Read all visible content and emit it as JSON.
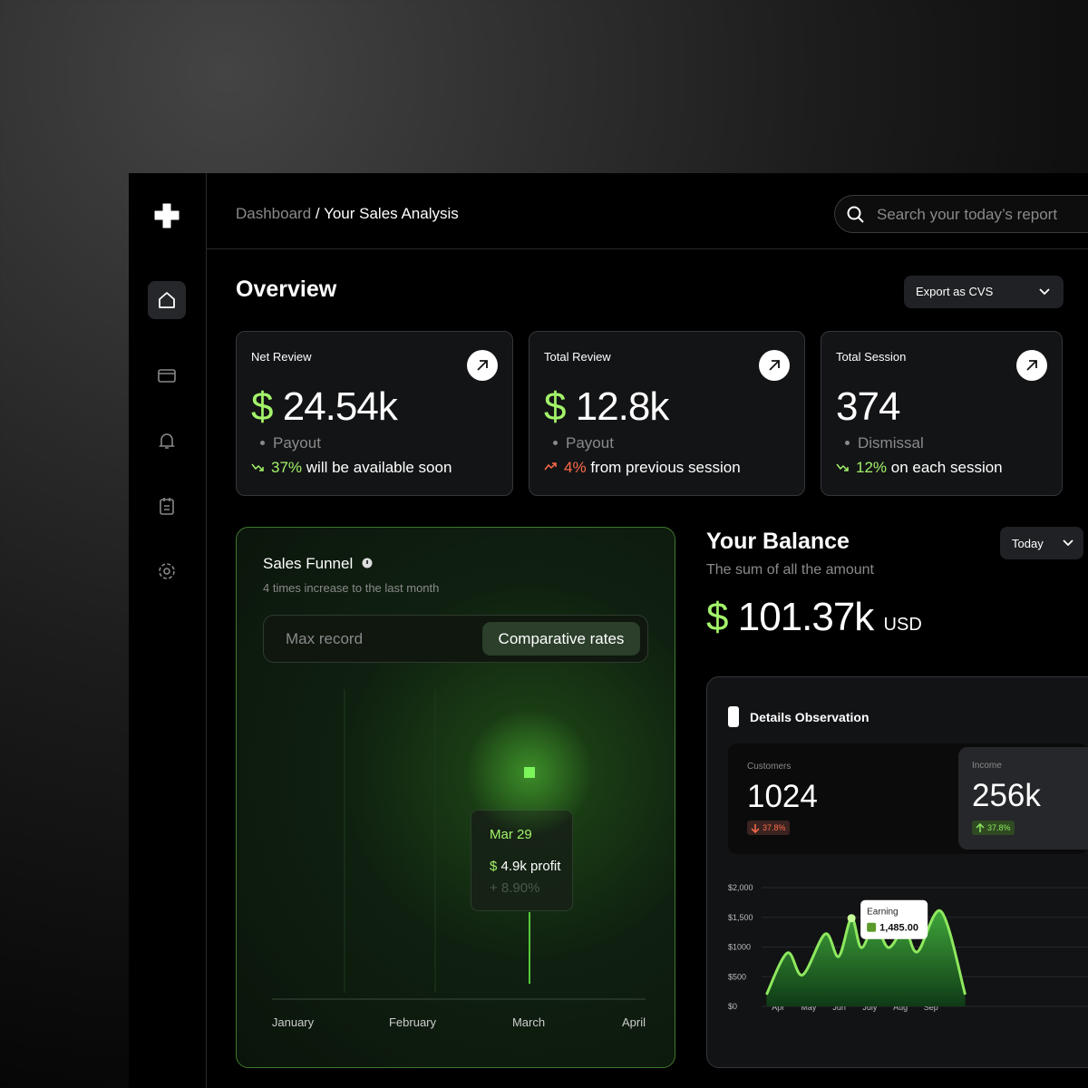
{
  "breadcrumb": {
    "parent": "Dashboard",
    "separator": "/",
    "current": "Your Sales Analysis"
  },
  "search": {
    "placeholder": "Search your today’s report"
  },
  "overview": {
    "title": "Overview",
    "export_button": "Export as CVS"
  },
  "cards": [
    {
      "title": "Net Review",
      "currency": "$",
      "value": "24.54k",
      "label": "Payout",
      "change": "37%",
      "change_text": "will be available soon",
      "trend": "positive"
    },
    {
      "title": "Total Review",
      "currency": "$",
      "value": "12.8k",
      "label": "Payout",
      "change": "4%",
      "change_text": "from previous session",
      "trend": "negative"
    },
    {
      "title": "Total Session",
      "value": "374",
      "label": "Dismissal",
      "change": "12%",
      "change_text": "on each session",
      "trend": "positive"
    }
  ],
  "sales_funnel": {
    "title": "Sales Funnel",
    "subtitle": "4 times increase to the last month",
    "tabs": [
      "Max record",
      "Comparative rates"
    ],
    "active_tab": 1,
    "tooltip": {
      "date": "Mar 29",
      "currency": "$",
      "profit": "4.9k profit",
      "change": "+ 8.90%"
    },
    "months": [
      "January",
      "February",
      "March",
      "April"
    ]
  },
  "balance": {
    "title": "Your Balance",
    "subtitle": "The sum of all the amount",
    "currency": "$",
    "amount": "101.37k",
    "unit": "USD",
    "period": "Today"
  },
  "details": {
    "title": "Details Observation",
    "stats": [
      {
        "label": "Customers",
        "value": "1024",
        "change": "37.8%",
        "trend": "down"
      },
      {
        "label": "Income",
        "value": "256k",
        "change": "37.8%",
        "trend": "up"
      }
    ]
  },
  "chart_data": {
    "type": "area",
    "x": [
      -0.38,
      0.3,
      0.8,
      1.54,
      1.98,
      2.4,
      2.72,
      3.17,
      3.61,
      4.14,
      4.56,
      5.33,
      6.12
    ],
    "values": [
      200,
      900,
      530,
      1220,
      840,
      1485,
      990,
      1370,
      990,
      1300,
      920,
      1600,
      200
    ],
    "color": "#8ee85e",
    "xlim": [
      -0.6,
      6.4
    ],
    "xticks": [
      {
        "value": 0,
        "label": "Apr"
      },
      {
        "value": 1,
        "label": "May"
      },
      {
        "value": 2,
        "label": "Jun"
      },
      {
        "value": 3,
        "label": "July"
      },
      {
        "value": 4,
        "label": "Aug"
      },
      {
        "value": 5,
        "label": "Sep"
      }
    ],
    "ylim": [
      0,
      2000
    ],
    "yticks": [
      {
        "value": 0,
        "label": "$0"
      },
      {
        "value": 500,
        "label": "$500"
      },
      {
        "value": 1000,
        "label": "$1000"
      },
      {
        "value": 1500,
        "label": "$1,500"
      },
      {
        "value": 2000,
        "label": "$2,000"
      }
    ],
    "grid": true,
    "tooltip": {
      "label": "Earning",
      "point": 5,
      "value_label": "1,485.00"
    }
  }
}
